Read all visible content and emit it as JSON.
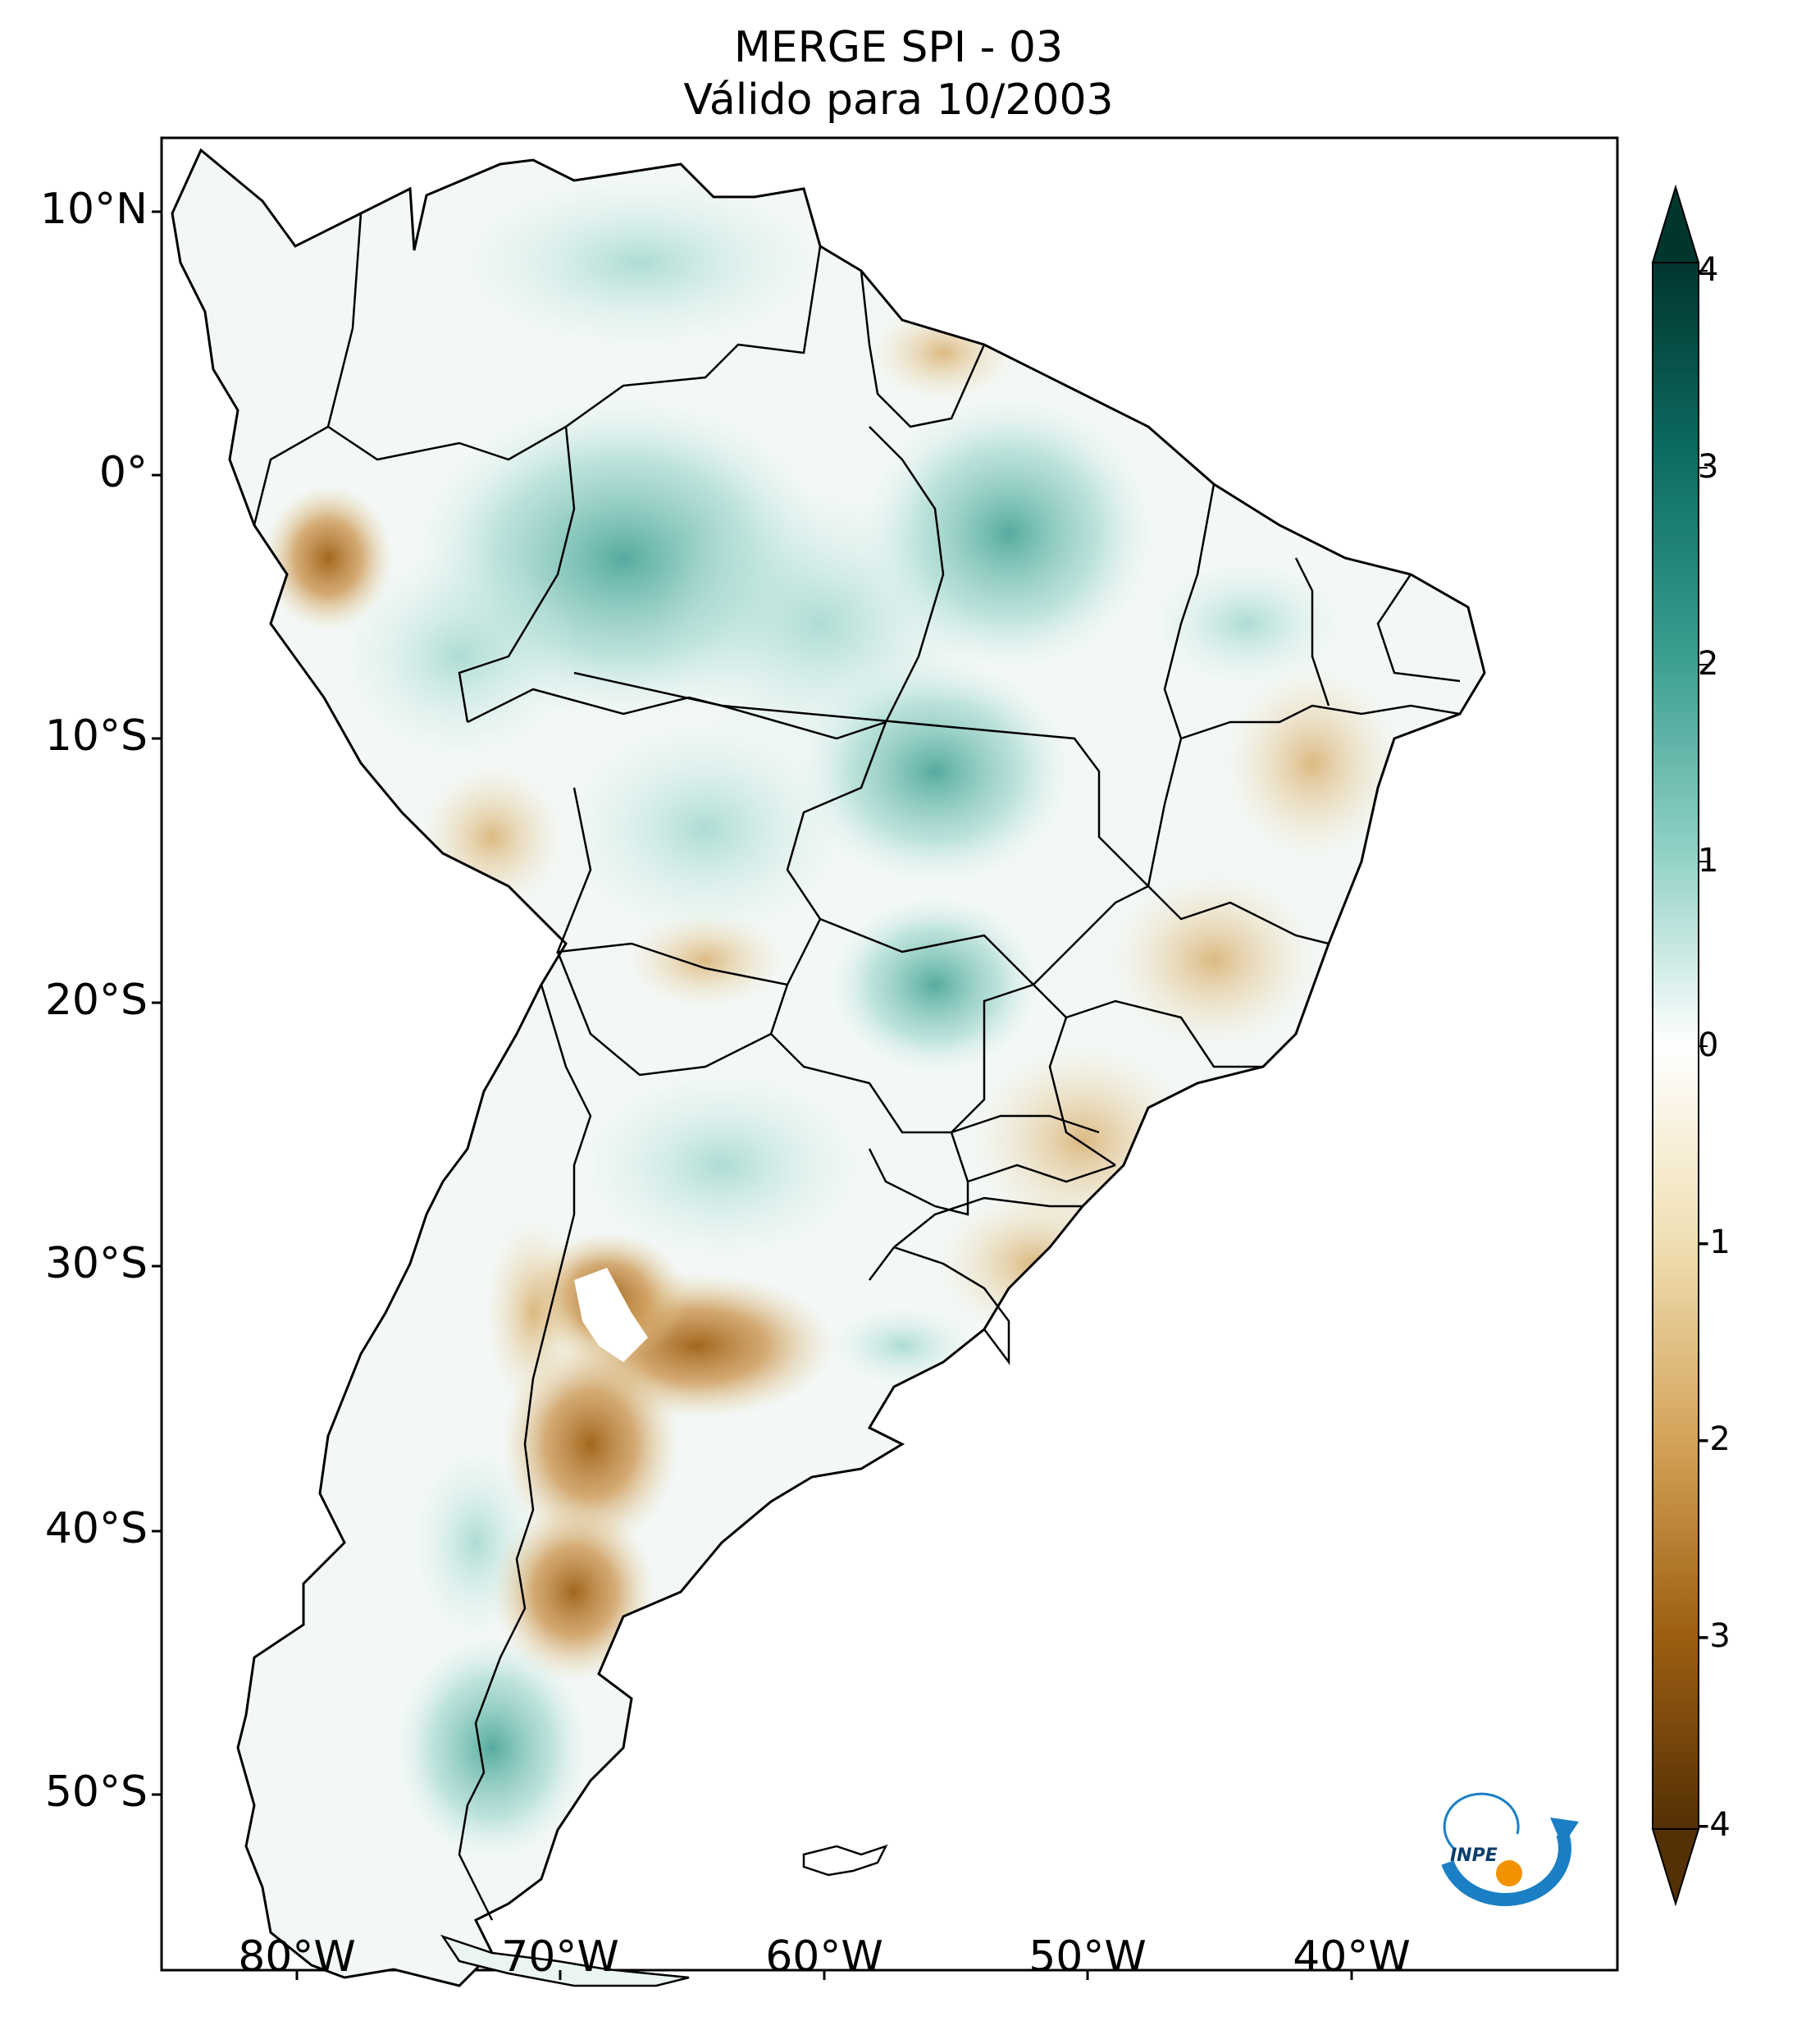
{
  "title": {
    "line1": "MERGE   SPI - 03",
    "line2": "Válido para 10/2003"
  },
  "axes": {
    "lat_labels": [
      "10°N",
      "0°",
      "10°S",
      "20°S",
      "30°S",
      "40°S",
      "50°S"
    ],
    "lon_labels": [
      "80°W",
      "70°W",
      "60°W",
      "50°W",
      "40°W"
    ]
  },
  "colorbar": {
    "ticks": [
      "4",
      "3",
      "2",
      "1",
      "0",
      "-1",
      "-2",
      "-3",
      "-4"
    ],
    "colors_top_to_bottom": [
      "#01362f",
      "#0d6d62",
      "#3a9e8f",
      "#8fd0c5",
      "#ffffff",
      "#f0dfb3",
      "#d4a45a",
      "#9e5f12",
      "#543005"
    ],
    "extend": "both"
  },
  "logo": {
    "text": "INPE",
    "colors": {
      "arc": "#1a7fc4",
      "dot": "#f39200"
    }
  }
}
